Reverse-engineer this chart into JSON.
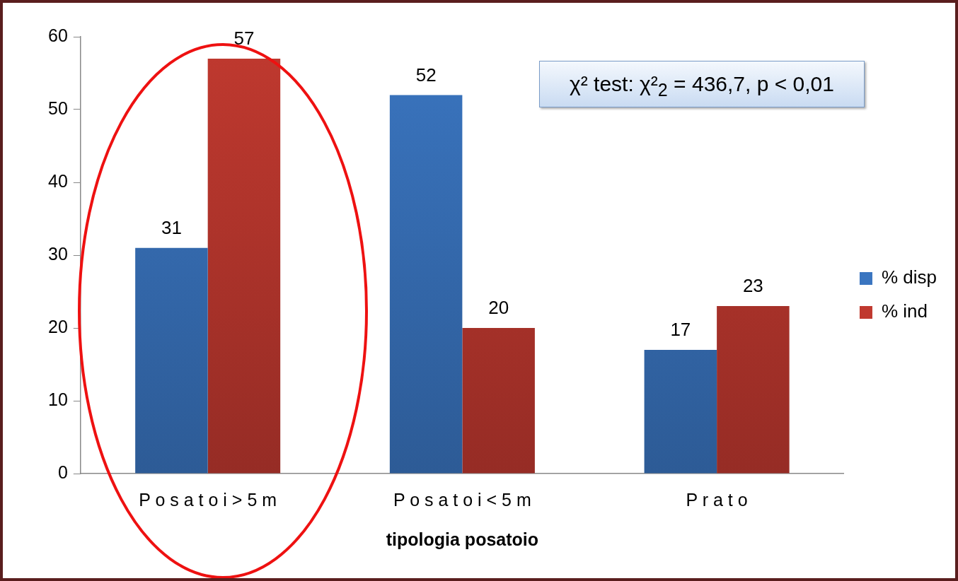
{
  "chart_data": {
    "type": "bar",
    "categories": [
      "P o s a t o i > 5 m",
      "P o s a t o i < 5 m",
      "P r a t o"
    ],
    "series": [
      {
        "name": "% disp",
        "color": "#3a75c0",
        "values": [
          31,
          52,
          17
        ]
      },
      {
        "name": "% ind",
        "color": "#c0392f",
        "values": [
          57,
          20,
          23
        ]
      }
    ],
    "xlabel": "tipologia posatoio",
    "ylim": [
      0,
      60
    ],
    "yticks": [
      0,
      10,
      20,
      30,
      40,
      50,
      60
    ],
    "grid": false,
    "legend": "right",
    "data_labels": true,
    "annotations": [
      "χ² test: χ²$_{2}$ = 436,7, p < 0,01"
    ]
  }
}
